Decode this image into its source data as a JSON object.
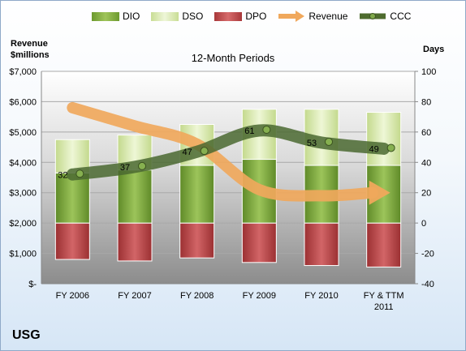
{
  "chart_data": {
    "type": "bar",
    "title": "12-Month Periods",
    "company": "USG",
    "y_left_label_line1": "Revenue",
    "y_left_label_line2": "$millions",
    "y_right_label": "Days",
    "categories": [
      "FY 2006",
      "FY 2007",
      "FY 2008",
      "FY 2009",
      "FY 2010",
      "FY & TTM 2011"
    ],
    "y_left": {
      "ylim": [
        0,
        7000
      ],
      "ticks": [
        0,
        1000,
        2000,
        3000,
        4000,
        5000,
        6000,
        7000
      ],
      "tick_labels": [
        "$-",
        "$1,000",
        "$2,000",
        "$3,000",
        "$4,000",
        "$5,000",
        "$6,000",
        "$7,000"
      ]
    },
    "y_right": {
      "ylim": [
        -40,
        100
      ],
      "ticks": [
        -40,
        -20,
        0,
        20,
        40,
        60,
        80,
        100
      ],
      "tick_labels": [
        "-40",
        "-20",
        "0",
        "20",
        "40",
        "60",
        "80",
        "100"
      ]
    },
    "series": [
      {
        "name": "DIO",
        "type": "bar",
        "axis": "days",
        "values": [
          33,
          35,
          38,
          42,
          38,
          38
        ],
        "color": "#7aa63a"
      },
      {
        "name": "DSO",
        "type": "bar",
        "axis": "days",
        "values": [
          22,
          23,
          27,
          33,
          37,
          35
        ],
        "color": "#d5e6a8"
      },
      {
        "name": "DPO",
        "type": "bar",
        "axis": "days",
        "values": [
          -24,
          -25,
          -23,
          -26,
          -28,
          -29
        ],
        "color": "#c0494b"
      },
      {
        "name": "Revenue",
        "type": "line",
        "axis": "revenue",
        "values": [
          5800,
          5200,
          4600,
          3100,
          2900,
          3000
        ],
        "color": "#f0a85c"
      },
      {
        "name": "CCC",
        "type": "line",
        "axis": "days",
        "values": [
          32,
          37,
          47,
          61,
          53,
          49
        ],
        "labels": [
          "32",
          "37",
          "47",
          "61",
          "53",
          "49"
        ],
        "color": "#4e6b2e"
      }
    ],
    "grid": true,
    "legend_position": "top"
  }
}
